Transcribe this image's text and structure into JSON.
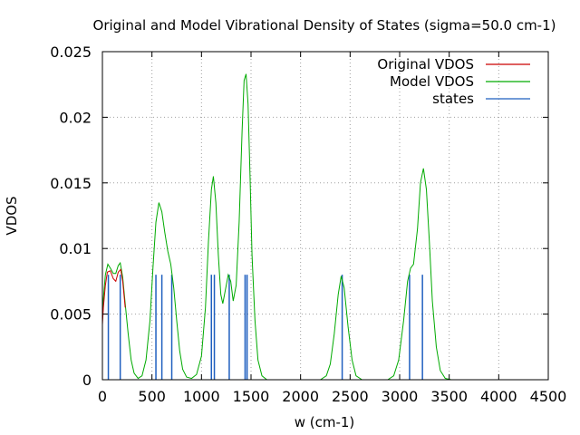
{
  "chart_data": {
    "type": "line",
    "title": "Original and Model Vibrational Density of States (sigma=50.0 cm-1)",
    "xlabel": "w (cm-1)",
    "ylabel": "VDOS",
    "xlim": [
      0,
      4500
    ],
    "ylim": [
      0,
      0.025
    ],
    "x_ticks": [
      0,
      500,
      1000,
      1500,
      2000,
      2500,
      3000,
      3500,
      4000,
      4500
    ],
    "y_ticks": [
      0,
      0.005,
      0.01,
      0.015,
      0.02,
      0.025
    ],
    "x_tick_labels": [
      "0",
      "500",
      "1000",
      "1500",
      "2000",
      "2500",
      "3000",
      "3500",
      "4000",
      "4500"
    ],
    "y_tick_labels": [
      "0",
      "0.005",
      "0.01",
      "0.015",
      "0.02",
      "0.025"
    ],
    "grid": true,
    "legend_position": "top-right",
    "series": [
      {
        "name": "Original VDOS",
        "color": "#cc0000",
        "points": [
          [
            0,
            0.0042
          ],
          [
            10,
            0.0055
          ],
          [
            30,
            0.0072
          ],
          [
            50,
            0.0082
          ],
          [
            80,
            0.0083
          ],
          [
            110,
            0.0077
          ],
          [
            135,
            0.0075
          ],
          [
            160,
            0.0082
          ],
          [
            185,
            0.0084
          ],
          [
            205,
            0.0075
          ],
          [
            230,
            0.0055
          ]
        ]
      },
      {
        "name": "Model VDOS",
        "color": "#00aa00",
        "points": [
          [
            0,
            0.0045
          ],
          [
            10,
            0.0062
          ],
          [
            30,
            0.008
          ],
          [
            55,
            0.0088
          ],
          [
            80,
            0.0085
          ],
          [
            110,
            0.0081
          ],
          [
            135,
            0.0081
          ],
          [
            160,
            0.0087
          ],
          [
            180,
            0.0089
          ],
          [
            205,
            0.0078
          ],
          [
            230,
            0.0058
          ],
          [
            260,
            0.0035
          ],
          [
            290,
            0.0015
          ],
          [
            320,
            0.0005
          ],
          [
            360,
            0.0001
          ],
          [
            400,
            0.0003
          ],
          [
            440,
            0.0015
          ],
          [
            480,
            0.0045
          ],
          [
            510,
            0.0085
          ],
          [
            540,
            0.012
          ],
          [
            570,
            0.0135
          ],
          [
            600,
            0.0128
          ],
          [
            630,
            0.0112
          ],
          [
            660,
            0.0098
          ],
          [
            690,
            0.0088
          ],
          [
            720,
            0.007
          ],
          [
            750,
            0.0045
          ],
          [
            780,
            0.0022
          ],
          [
            810,
            0.0008
          ],
          [
            850,
            0.0002
          ],
          [
            900,
            0.0001
          ],
          [
            950,
            0.0004
          ],
          [
            1000,
            0.0018
          ],
          [
            1040,
            0.0055
          ],
          [
            1070,
            0.0105
          ],
          [
            1100,
            0.0145
          ],
          [
            1120,
            0.0155
          ],
          [
            1145,
            0.0135
          ],
          [
            1170,
            0.0095
          ],
          [
            1195,
            0.0065
          ],
          [
            1215,
            0.0058
          ],
          [
            1240,
            0.0068
          ],
          [
            1270,
            0.008
          ],
          [
            1295,
            0.0075
          ],
          [
            1320,
            0.006
          ],
          [
            1350,
            0.0072
          ],
          [
            1380,
            0.012
          ],
          [
            1410,
            0.019
          ],
          [
            1430,
            0.0228
          ],
          [
            1450,
            0.0233
          ],
          [
            1470,
            0.021
          ],
          [
            1490,
            0.0155
          ],
          [
            1510,
            0.0095
          ],
          [
            1540,
            0.0045
          ],
          [
            1570,
            0.0015
          ],
          [
            1610,
            0.0003
          ],
          [
            1660,
            0.0
          ],
          [
            2200,
            0.0
          ],
          [
            2260,
            0.0003
          ],
          [
            2300,
            0.0012
          ],
          [
            2340,
            0.0035
          ],
          [
            2380,
            0.0065
          ],
          [
            2410,
            0.0079
          ],
          [
            2440,
            0.007
          ],
          [
            2480,
            0.004
          ],
          [
            2520,
            0.0015
          ],
          [
            2560,
            0.0003
          ],
          [
            2620,
            0.0
          ],
          [
            2880,
            0.0
          ],
          [
            2940,
            0.0003
          ],
          [
            2990,
            0.0015
          ],
          [
            3040,
            0.0045
          ],
          [
            3080,
            0.0075
          ],
          [
            3110,
            0.0085
          ],
          [
            3140,
            0.0088
          ],
          [
            3180,
            0.0115
          ],
          [
            3210,
            0.015
          ],
          [
            3240,
            0.0161
          ],
          [
            3270,
            0.0145
          ],
          [
            3300,
            0.0105
          ],
          [
            3330,
            0.006
          ],
          [
            3370,
            0.0025
          ],
          [
            3410,
            0.0007
          ],
          [
            3460,
            0.0001
          ],
          [
            3520,
            0.0
          ]
        ]
      },
      {
        "name": "states",
        "color": "#1f5fbf",
        "impulses": [
          [
            60,
            0.008
          ],
          [
            180,
            0.008
          ],
          [
            540,
            0.008
          ],
          [
            600,
            0.008
          ],
          [
            700,
            0.008
          ],
          [
            1100,
            0.008
          ],
          [
            1130,
            0.008
          ],
          [
            1280,
            0.008
          ],
          [
            1440,
            0.008
          ],
          [
            1460,
            0.008
          ],
          [
            2420,
            0.008
          ],
          [
            3100,
            0.008
          ],
          [
            3230,
            0.008
          ]
        ]
      }
    ]
  }
}
